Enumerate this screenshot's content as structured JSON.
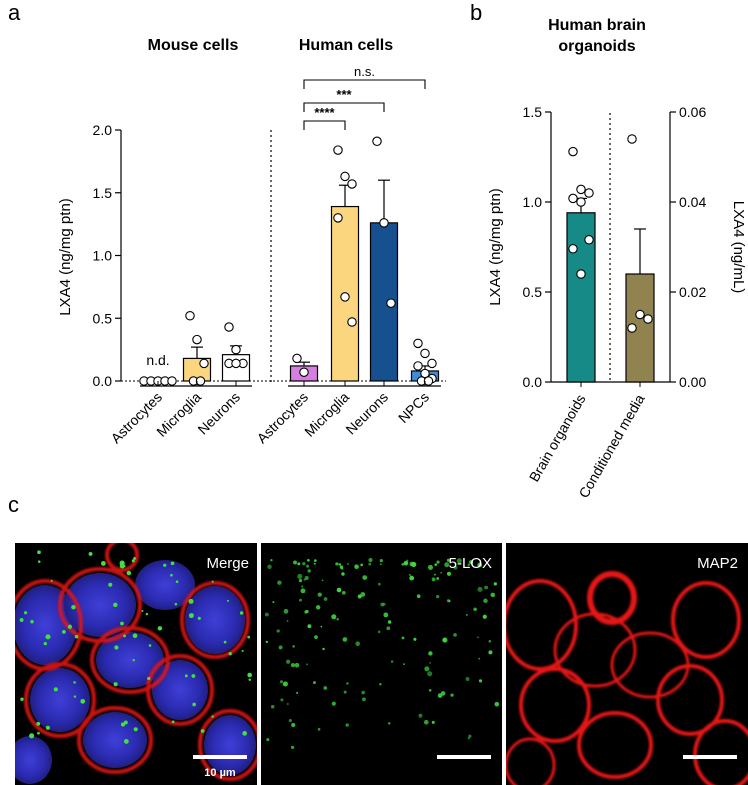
{
  "panel_letters": {
    "a": "a",
    "b": "b",
    "c": "c"
  },
  "chart_data": [
    {
      "type": "bar",
      "panel": "a",
      "ylabel": "LXA4 (ng/mg ptn)",
      "ylim": [
        0,
        2.0
      ],
      "yticks": [
        "0.0",
        "0.5",
        "1.0",
        "1.5",
        "2.0"
      ],
      "groups": [
        {
          "label": "Mouse cells",
          "categories": [
            "Astrocytes",
            "Microglia",
            "Neurons"
          ]
        },
        {
          "label": "Human cells",
          "categories": [
            "Astrocytes",
            "Microglia",
            "Neurons",
            "NPCs"
          ]
        }
      ],
      "bars": [
        {
          "category": "Astrocytes",
          "group": "Mouse cells",
          "value": 0,
          "error": 0,
          "color": "#ffffff",
          "points": [
            0,
            0,
            0,
            0,
            0
          ],
          "annotation": "n.d."
        },
        {
          "category": "Microglia",
          "group": "Mouse cells",
          "value": 0.18,
          "error": 0.09,
          "color": "#fcd57f",
          "points": [
            0.52,
            0.33,
            0.14,
            0,
            0
          ]
        },
        {
          "category": "Neurons",
          "group": "Mouse cells",
          "value": 0.21,
          "error": 0.07,
          "color": "#ffffff",
          "points": [
            0.43,
            0.25,
            0.14,
            0.14,
            0.14
          ]
        },
        {
          "category": "Astrocytes",
          "group": "Human cells",
          "value": 0.12,
          "error": 0.03,
          "color": "#d67fe0",
          "points": [
            0.18,
            0.07
          ]
        },
        {
          "category": "Microglia",
          "group": "Human cells",
          "value": 1.39,
          "error": 0.17,
          "color": "#fcd57f",
          "points": [
            1.84,
            1.63,
            1.57,
            1.3,
            0.67,
            0.47
          ]
        },
        {
          "category": "Neurons",
          "group": "Human cells",
          "value": 1.26,
          "error": 0.34,
          "color": "#17508f",
          "points": [
            1.91,
            1.26,
            0.62
          ]
        },
        {
          "category": "NPCs",
          "group": "Human cells",
          "value": 0.08,
          "error": 0.04,
          "color": "#3a8fd8",
          "points": [
            0.3,
            0.22,
            0.14,
            0.12,
            0.06,
            0.02,
            0,
            0
          ]
        }
      ],
      "significance": [
        {
          "from": "Astrocytes",
          "to": "Microglia",
          "label": "****"
        },
        {
          "from": "Astrocytes",
          "to": "Neurons",
          "label": "***"
        },
        {
          "from": "Astrocytes",
          "to": "NPCs",
          "label": "n.s."
        }
      ]
    },
    {
      "type": "bar",
      "panel": "b",
      "title": "Human brain organoids",
      "ylabel": "LXA4 (ng/mg ptn)",
      "ylim": [
        0,
        1.5
      ],
      "yticks": [
        "0.0",
        "0.5",
        "1.0",
        "1.5"
      ],
      "y2label": "LXA4 (ng/mL)",
      "y2lim": [
        0,
        0.06
      ],
      "y2ticks": [
        "0.00",
        "0.02",
        "0.04",
        "0.06"
      ],
      "bars": [
        {
          "category": "Brain organoids",
          "axis": "left",
          "value": 0.94,
          "error": 0.08,
          "color": "#158a86",
          "points": [
            1.28,
            1.07,
            1.05,
            1.02,
            1.0,
            0.79,
            0.74,
            0.6
          ]
        },
        {
          "category": "Conditioned media",
          "axis": "right",
          "value": 0.024,
          "error": 0.01,
          "color": "#908350",
          "points": [
            0.054,
            0.015,
            0.014,
            0.012
          ]
        }
      ]
    }
  ],
  "micrographs": [
    {
      "label": "Merge",
      "scale_label": "10 µm"
    },
    {
      "label": "5-LOX"
    },
    {
      "label": "MAP2"
    }
  ]
}
